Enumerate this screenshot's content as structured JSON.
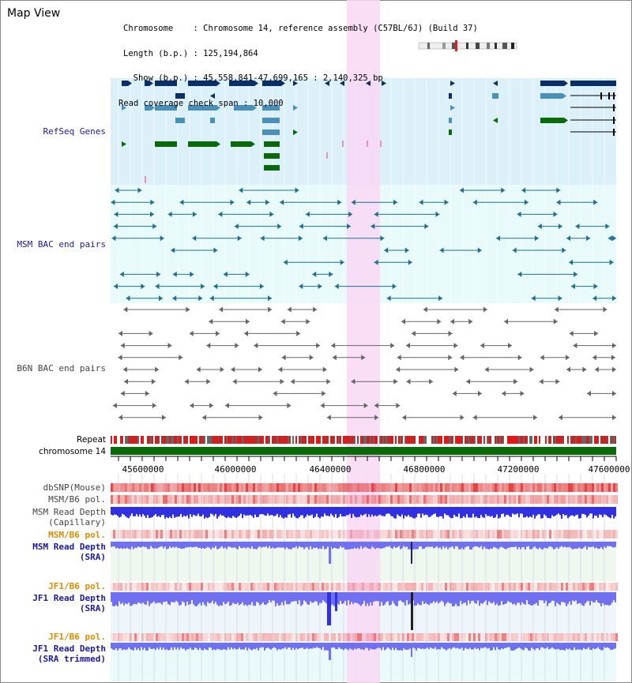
{
  "page": {
    "title": "Map View"
  },
  "info": {
    "chromosome_line": "Chromosome    : Chromosome 14, reference assembly (C57BL/6J) (Build 37)",
    "length_line": "Length (b.p.) : 125,194,864",
    "show_line": "  Show (b.p.) : 45,558,841-47,699,165 : 2,140,325 bp",
    "coverage_line": "Read coverage check span : 10,000"
  },
  "tracks": {
    "refseq": "RefSeq Genes",
    "msm_bac": "MSM BAC end pairs",
    "b6n_bac": "B6N BAC end pairs",
    "repeat": "Repeat",
    "chromosome": "chromosome 14"
  },
  "axis": {
    "ticks": [
      "45600000",
      "46000000",
      "46400000",
      "46800000",
      "47200000",
      "47600000"
    ]
  },
  "lower_tracks": {
    "dbsnp": "dbSNP(Mouse)",
    "msm_b6_pol": "MSM/B6 pol.",
    "msm_depth_cap_1": "MSM Read Depth",
    "msm_depth_cap_2": "(Capillary)",
    "msm_b6_pol_2": "MSM/B6 pol.",
    "msm_depth_sra_1": "MSM Read Depth",
    "msm_depth_sra_2": "(SRA)",
    "jf1_b6_pol": "JF1/B6 pol.",
    "jf1_depth_sra_1": "JF1 Read Depth",
    "jf1_depth_sra_2": "(SRA)",
    "jf1_b6_pol_2": "JF1/B6 pol.",
    "jf1_depth_trim_1": "JF1 Read Depth",
    "jf1_depth_trim_2": "(SRA trimmed)"
  },
  "colors": {
    "highlight": "#f8d8f4",
    "refseq_bg": "#dcf0fa",
    "bac_bg": "#e8fafa",
    "gene_dark": "#0a2f66",
    "gene_mid": "#4a90b8",
    "gene_green": "#0a6a0a",
    "msm_bac": "#1f6f8f",
    "b6n_bac": "#666666",
    "chromosome": "#0a6a0a",
    "depth_blue": "#3030e0",
    "depth_light": "#7070f0",
    "pol_red": "#e03030",
    "label_blue": "#1a1aa0",
    "label_orange": "#e08a00"
  }
}
